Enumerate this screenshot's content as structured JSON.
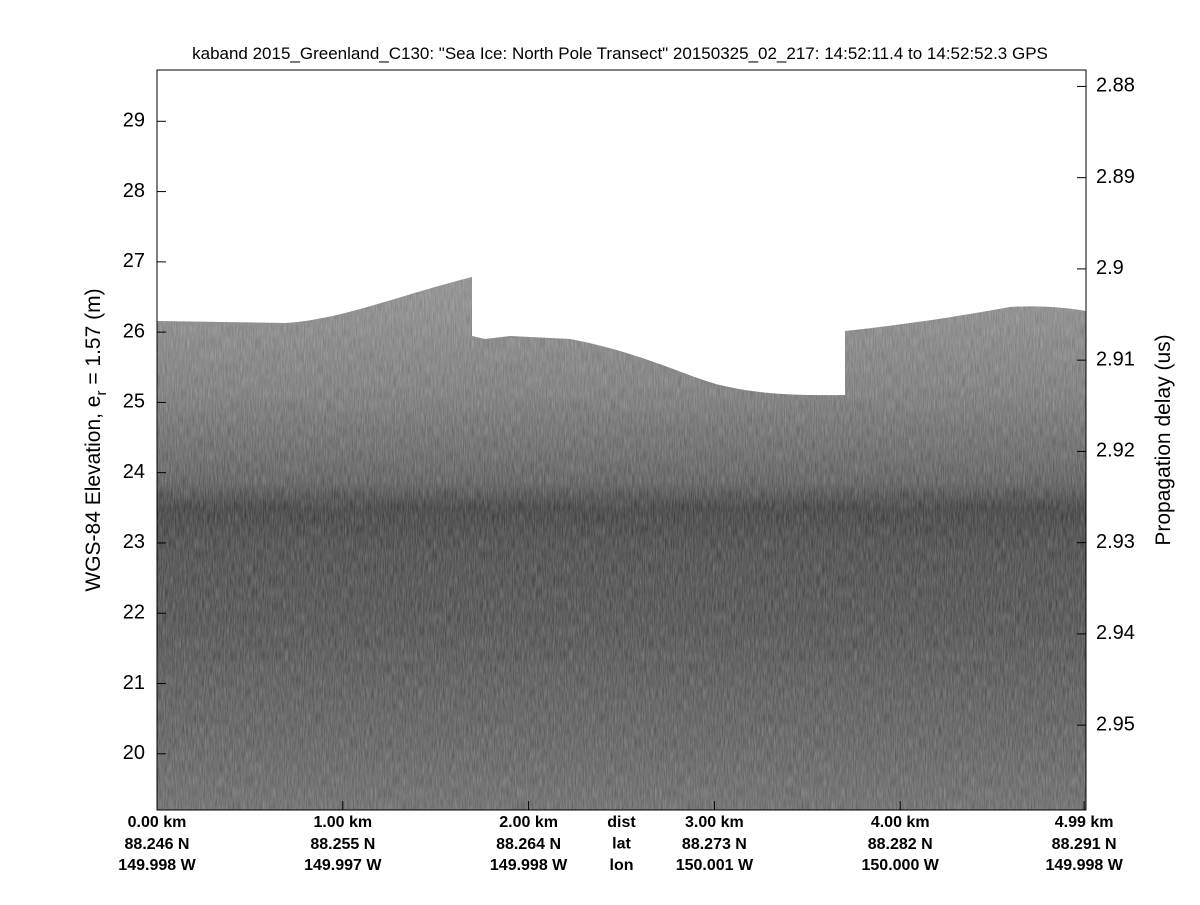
{
  "chart_data": {
    "type": "echogram",
    "title": "kaband 2015_Greenland_C130: \"Sea Ice: North Pole Transect\"  20150325_02_217: 14:52:11.4 to 14:52:52.3 GPS",
    "ylabel_parts": [
      "WGS-84 Elevation, e",
      "r",
      " = 1.57 (m)"
    ],
    "y2label": "Propagation delay (us)",
    "ylim": [
      19.2,
      29.73
    ],
    "yticks": [
      20,
      21,
      22,
      23,
      24,
      25,
      26,
      27,
      28,
      29
    ],
    "y2lim": [
      2.9593,
      2.8782
    ],
    "y2ticks": [
      2.88,
      2.89,
      2.9,
      2.91,
      2.92,
      2.93,
      2.94,
      2.95
    ],
    "xlim": [
      0,
      5.0
    ],
    "xticks": [
      {
        "value": 0,
        "label": "0.00 km"
      },
      {
        "value": 1,
        "label": "1.00 km"
      },
      {
        "value": 2,
        "label": "2.00 km"
      },
      {
        "value": 3,
        "label": "3.00 km"
      },
      {
        "value": 4,
        "label": "4.00 km"
      },
      {
        "value": 4.99,
        "label": "4.99 km"
      }
    ],
    "lat_labels": [
      "88.246 N",
      "88.255 N",
      "88.264 N",
      "88.273 N",
      "88.282 N",
      "88.291 N"
    ],
    "lon_labels": [
      "149.998 W",
      "149.997 W",
      "149.998 W",
      "150.001 W",
      "150.000 W",
      "149.998 W"
    ],
    "row_labels": [
      "dist",
      "lat",
      "lon"
    ]
  }
}
